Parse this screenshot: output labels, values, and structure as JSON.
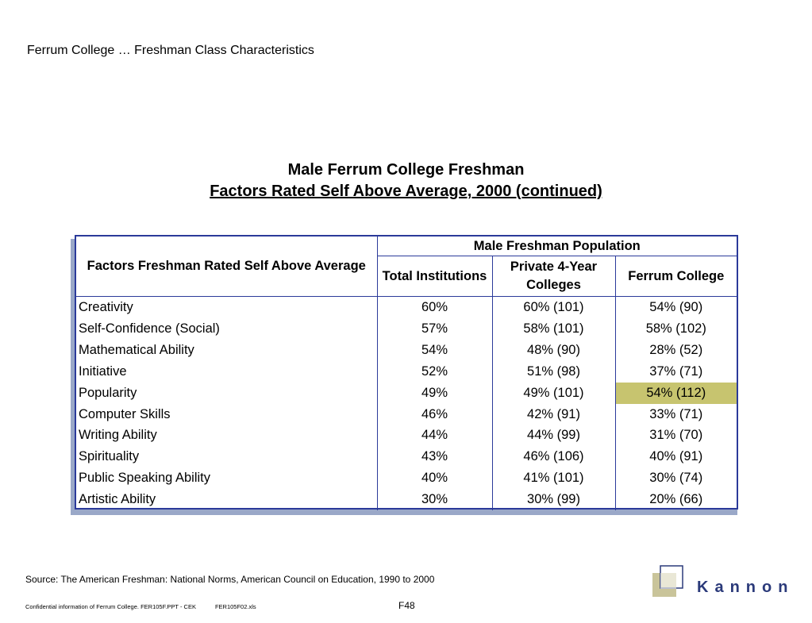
{
  "header": {
    "title": "Ferrum College … Freshman Class Characteristics"
  },
  "main_title": {
    "line1": "Male Ferrum College Freshman",
    "line2": "Factors Rated Self Above Average, 2000 (continued)"
  },
  "table": {
    "factor_header": "Factors Freshman Rated Self Above Average",
    "group_header": "Male Freshman Population",
    "columns": [
      "Total Institutions",
      "Private 4-Year Colleges",
      "Ferrum College"
    ],
    "rows": [
      {
        "factor": "Creativity",
        "total": "60%",
        "private": "60% (101)",
        "ferrum": "54% (90)"
      },
      {
        "factor": "Self-Confidence (Social)",
        "total": "57%",
        "private": "58% (101)",
        "ferrum": "58% (102)"
      },
      {
        "factor": "Mathematical Ability",
        "total": "54%",
        "private": "48% (90)",
        "ferrum": "28% (52)"
      },
      {
        "factor": "Initiative",
        "total": "52%",
        "private": "51% (98)",
        "ferrum": "37% (71)"
      },
      {
        "factor": "Popularity",
        "total": "49%",
        "private": "49% (101)",
        "ferrum": "54% (112)",
        "highlight": true
      },
      {
        "factor": "Computer Skills",
        "total": "46%",
        "private": "42% (91)",
        "ferrum": "33% (71)"
      },
      {
        "factor": "Writing Ability",
        "total": "44%",
        "private": "44% (99)",
        "ferrum": "31% (70)"
      },
      {
        "factor": "Spirituality",
        "total": "43%",
        "private": "46% (106)",
        "ferrum": "40% (91)"
      },
      {
        "factor": "Public Speaking Ability",
        "total": "40%",
        "private": "41% (101)",
        "ferrum": "30% (74)"
      },
      {
        "factor": "Artistic Ability",
        "total": "30%",
        "private": "30% (99)",
        "ferrum": "20% (66)"
      }
    ],
    "highlight_color": "#c7c46f",
    "border_color": "#2b3a9a"
  },
  "source": "Source:  The American Freshman:  National Norms, American Council on Education, 1990 to 2000",
  "footer": {
    "confidential": "Confidential information of Ferrum College.    FER105F.PPT - CEK",
    "file": "FER105F02.xls",
    "page": "F48"
  },
  "logo": {
    "text": "Kannon",
    "icon": "kannon-logo-icon"
  }
}
